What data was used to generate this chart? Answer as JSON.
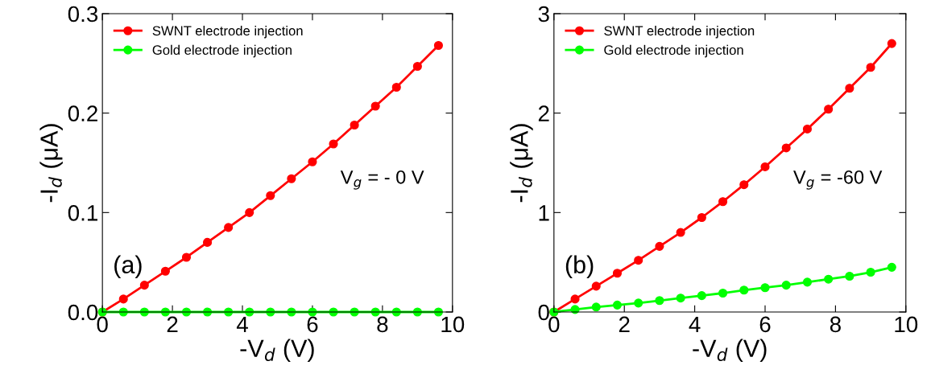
{
  "chart_data": [
    {
      "type": "line",
      "xlabel": "-V$_{d}$ (V)",
      "ylabel": "-I$_{d}$ (μA)",
      "x": [
        0,
        0.6,
        1.2,
        1.8,
        2.4,
        3.0,
        3.6,
        4.2,
        4.8,
        5.4,
        6.0,
        6.6,
        7.2,
        7.8,
        8.4,
        9.0,
        9.6
      ],
      "series": [
        {
          "name": "SWNT electrode injection",
          "color": "#ff0000",
          "values": [
            0,
            0.013,
            0.027,
            0.041,
            0.055,
            0.07,
            0.085,
            0.1,
            0.117,
            0.134,
            0.151,
            0.169,
            0.188,
            0.207,
            0.226,
            0.247,
            0.268
          ]
        },
        {
          "name": "Gold electrode injection",
          "color": "#00ff00",
          "values": [
            0,
            0,
            0,
            0,
            0,
            0,
            0,
            0,
            0,
            0,
            0,
            0,
            0,
            0,
            0,
            0,
            0
          ]
        }
      ],
      "xlim": [
        0,
        10
      ],
      "xticks": [
        0,
        2,
        4,
        6,
        8,
        10
      ],
      "ylim": [
        0,
        0.3
      ],
      "yticks": [
        {
          "value": 0,
          "label": "0.0"
        },
        0.1,
        0.2,
        0.3
      ],
      "annotations": [
        "(a)",
        "V$_{g}$ = - 0 V"
      ],
      "legend": "top left",
      "marker": "circle",
      "line_style": "solid"
    },
    {
      "type": "line",
      "xlabel": "-V$_{d}$ (V)",
      "ylabel": "-I$_{d}$ (μA)",
      "x": [
        0,
        0.6,
        1.2,
        1.8,
        2.4,
        3.0,
        3.6,
        4.2,
        4.8,
        5.4,
        6.0,
        6.6,
        7.2,
        7.8,
        8.4,
        9.0,
        9.6
      ],
      "series": [
        {
          "name": "SWNT electrode injection",
          "color": "#ff0000",
          "values": [
            0,
            0.13,
            0.26,
            0.39,
            0.52,
            0.66,
            0.8,
            0.95,
            1.11,
            1.28,
            1.46,
            1.65,
            1.84,
            2.04,
            2.25,
            2.46,
            2.7
          ]
        },
        {
          "name": "Gold electrode injection",
          "color": "#00ff00",
          "values": [
            0,
            0.025,
            0.05,
            0.07,
            0.09,
            0.115,
            0.14,
            0.165,
            0.19,
            0.22,
            0.245,
            0.27,
            0.3,
            0.33,
            0.36,
            0.4,
            0.45
          ]
        }
      ],
      "xlim": [
        0,
        10
      ],
      "xticks": [
        0,
        2,
        4,
        6,
        8,
        10
      ],
      "ylim": [
        0,
        3
      ],
      "yticks": [
        0,
        1,
        2,
        3
      ],
      "annotations": [
        "(b)",
        "V$_{g}$ = -60 V"
      ],
      "legend": "top left",
      "marker": "circle",
      "line_style": "solid"
    }
  ]
}
